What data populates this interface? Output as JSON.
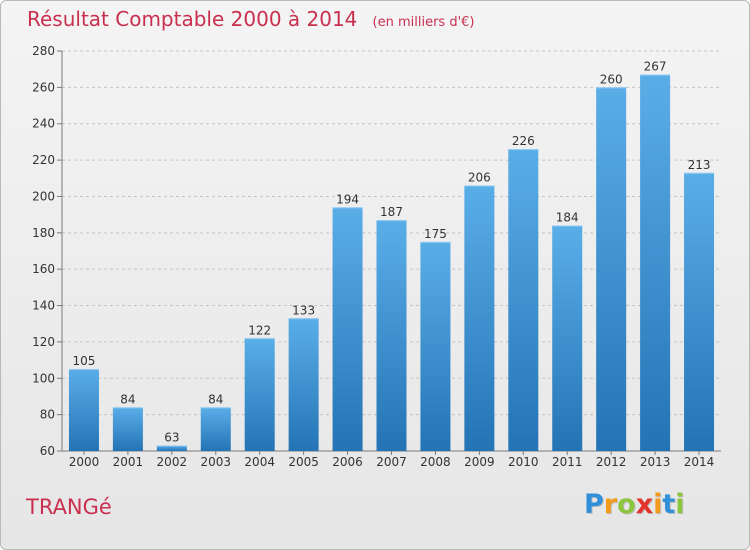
{
  "title": "Résultat Comptable 2000 à 2014",
  "unit_note": "(en milliers d'€)",
  "entity": "TRANGé",
  "logo": {
    "letters": [
      "P",
      "r",
      "o",
      "x",
      "i",
      "t",
      "i"
    ],
    "colors": [
      "#2f8fd8",
      "#f29a1b",
      "#8cc63e",
      "#e2342d",
      "#f29a1b",
      "#2f8fd8",
      "#8cc63e"
    ]
  },
  "colors": {
    "bar_top": "#5aaee8",
    "bar_bottom": "#2474b5",
    "title": "#c9304f",
    "axis": "#7a7a7a"
  },
  "chart_data": {
    "type": "bar",
    "categories": [
      "2000",
      "2001",
      "2002",
      "2003",
      "2004",
      "2005",
      "2006",
      "2007",
      "2008",
      "2009",
      "2010",
      "2011",
      "2012",
      "2013",
      "2014"
    ],
    "values": [
      105,
      84,
      63,
      84,
      122,
      133,
      194,
      187,
      175,
      206,
      226,
      184,
      260,
      267,
      213
    ],
    "ylim": [
      60,
      280
    ],
    "yticks": [
      60,
      80,
      100,
      120,
      140,
      160,
      180,
      200,
      220,
      240,
      260,
      280
    ],
    "grid": true,
    "data_labels": true
  }
}
